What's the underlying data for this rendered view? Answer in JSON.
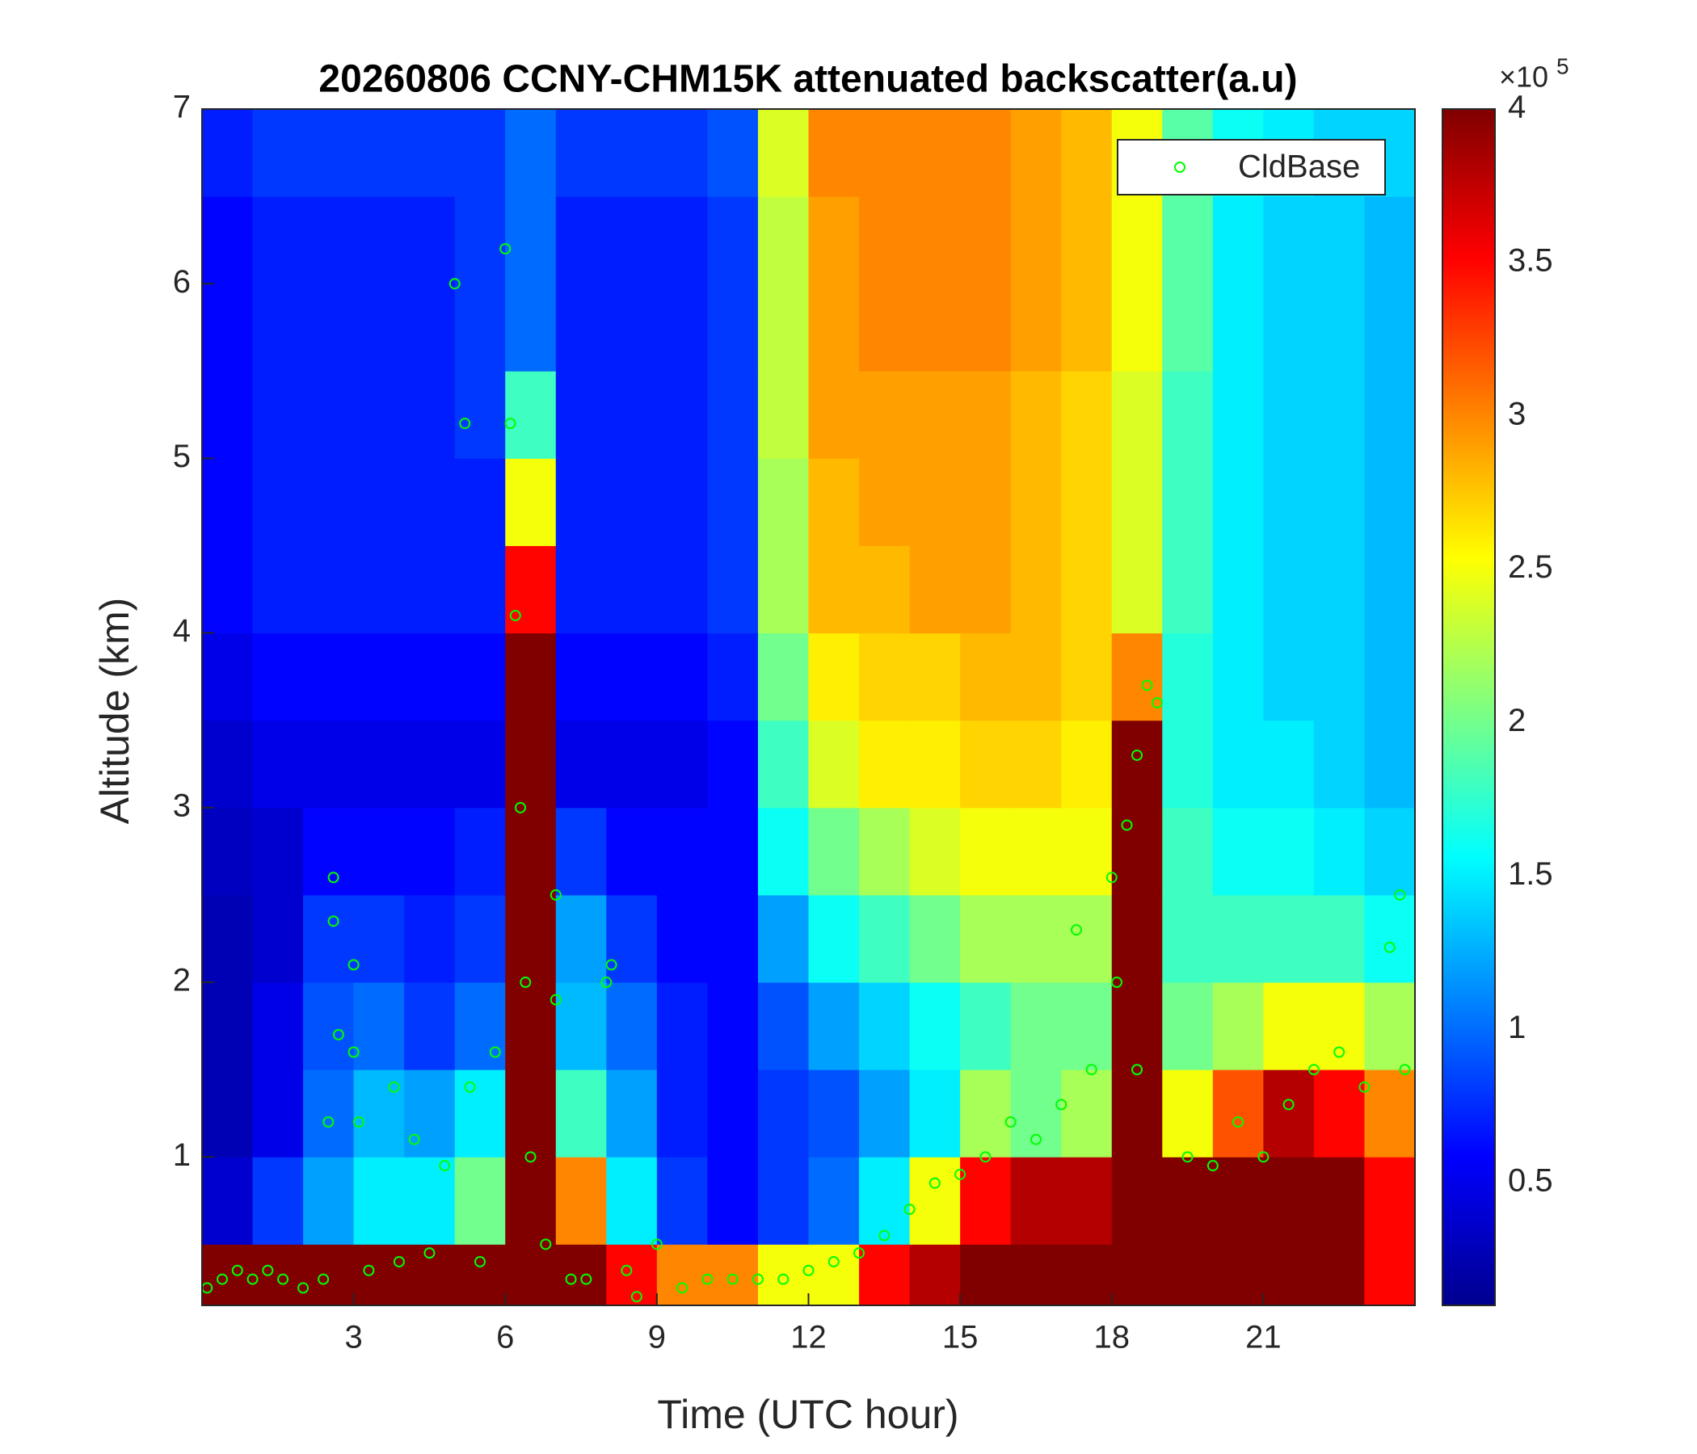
{
  "chart_data": {
    "type": "heatmap",
    "title": "20260806 CCNY-CHM15K attenuated backscatter(a.u)",
    "x_label": "Time (UTC hour)",
    "y_label": "Altitude (km)",
    "xlim": [
      0,
      24
    ],
    "xticks": [
      3,
      6,
      9,
      12,
      15,
      18,
      21
    ],
    "ylim": [
      0.15,
      7
    ],
    "yticks": [
      1,
      2,
      3,
      4,
      5,
      6,
      7
    ],
    "x_edges": [
      0,
      1,
      2,
      3,
      4,
      5,
      6,
      7,
      8,
      9,
      10,
      11,
      12,
      13,
      14,
      15,
      16,
      17,
      18,
      19,
      20,
      21,
      22,
      23,
      24
    ],
    "y_edges": [
      0.15,
      0.5,
      1,
      1.5,
      2,
      2.5,
      3,
      3.5,
      4,
      4.5,
      5,
      5.5,
      6,
      6.5,
      7
    ],
    "z": [
      [
        4,
        4,
        4,
        4,
        4,
        4,
        4,
        4,
        3.5,
        3,
        3,
        2.5,
        2.5,
        3.5,
        3.8,
        4,
        4,
        4,
        4,
        4,
        4,
        4,
        4,
        3.5
      ],
      [
        0.4,
        0.8,
        1.2,
        1.5,
        1.5,
        2,
        4,
        3,
        1.5,
        0.8,
        0.6,
        0.8,
        1,
        1.5,
        2.5,
        3.5,
        3.8,
        3.8,
        4,
        4,
        4,
        4,
        4,
        3.5
      ],
      [
        0.3,
        0.5,
        1,
        1.3,
        1.2,
        1.5,
        4,
        1.8,
        1.2,
        0.7,
        0.6,
        0.8,
        0.9,
        1.2,
        1.5,
        2.2,
        2,
        2.2,
        4,
        2.5,
        3.2,
        3.8,
        3.5,
        3
      ],
      [
        0.3,
        0.5,
        0.9,
        1,
        0.8,
        1,
        4,
        1.3,
        1,
        0.7,
        0.6,
        0.9,
        1.2,
        1.4,
        1.6,
        1.8,
        2,
        2,
        4,
        2,
        2.2,
        2.5,
        2.5,
        2.2
      ],
      [
        0.3,
        0.4,
        0.8,
        0.8,
        0.7,
        0.8,
        4,
        1.2,
        0.8,
        0.6,
        0.6,
        1.2,
        1.6,
        1.8,
        2,
        2.2,
        2.2,
        2.2,
        4,
        1.8,
        1.8,
        1.8,
        1.8,
        1.6
      ],
      [
        0.35,
        0.4,
        0.6,
        0.6,
        0.6,
        0.7,
        4,
        0.8,
        0.6,
        0.6,
        0.6,
        1.6,
        2,
        2.2,
        2.4,
        2.5,
        2.5,
        2.5,
        4,
        1.8,
        1.6,
        1.6,
        1.5,
        1.4
      ],
      [
        0.4,
        0.5,
        0.5,
        0.5,
        0.5,
        0.5,
        4,
        0.5,
        0.5,
        0.5,
        0.6,
        1.8,
        2.4,
        2.6,
        2.6,
        2.7,
        2.7,
        2.6,
        4,
        1.7,
        1.5,
        1.5,
        1.4,
        1.3
      ],
      [
        0.5,
        0.6,
        0.6,
        0.6,
        0.6,
        0.6,
        4,
        0.6,
        0.6,
        0.6,
        0.7,
        2,
        2.6,
        2.7,
        2.7,
        2.8,
        2.8,
        2.7,
        3,
        1.7,
        1.5,
        1.4,
        1.4,
        1.3
      ],
      [
        0.6,
        0.7,
        0.7,
        0.7,
        0.7,
        0.7,
        3.5,
        0.7,
        0.7,
        0.7,
        0.8,
        2.2,
        2.8,
        2.8,
        2.9,
        2.9,
        2.8,
        2.7,
        2.4,
        1.8,
        1.5,
        1.4,
        1.4,
        1.3
      ],
      [
        0.6,
        0.7,
        0.7,
        0.7,
        0.7,
        0.7,
        2.5,
        0.7,
        0.7,
        0.7,
        0.8,
        2.2,
        2.8,
        2.9,
        2.9,
        2.9,
        2.8,
        2.7,
        2.4,
        1.8,
        1.5,
        1.4,
        1.4,
        1.3
      ],
      [
        0.6,
        0.7,
        0.7,
        0.7,
        0.7,
        0.8,
        1.8,
        0.7,
        0.7,
        0.7,
        0.8,
        2.3,
        2.9,
        2.9,
        2.9,
        2.9,
        2.8,
        2.7,
        2.4,
        1.8,
        1.5,
        1.4,
        1.4,
        1.3
      ],
      [
        0.6,
        0.7,
        0.7,
        0.7,
        0.7,
        0.8,
        1,
        0.7,
        0.7,
        0.7,
        0.8,
        2.3,
        2.9,
        3,
        3,
        3,
        2.9,
        2.8,
        2.5,
        1.9,
        1.5,
        1.4,
        1.4,
        1.3
      ],
      [
        0.6,
        0.7,
        0.7,
        0.7,
        0.7,
        0.8,
        1,
        0.7,
        0.7,
        0.7,
        0.8,
        2.3,
        2.9,
        3,
        3,
        3,
        2.9,
        2.8,
        2.5,
        1.9,
        1.5,
        1.4,
        1.4,
        1.3
      ],
      [
        0.7,
        0.8,
        0.8,
        0.8,
        0.8,
        0.8,
        1,
        0.8,
        0.8,
        0.8,
        0.9,
        2.4,
        3,
        3,
        3,
        3,
        2.9,
        2.8,
        2.5,
        1.9,
        1.6,
        1.5,
        1.4,
        1.4
      ]
    ],
    "colormap": "jet",
    "clim": [
      0.1,
      4
    ],
    "colorbar_ticks": [
      0.5,
      1,
      1.5,
      2,
      2.5,
      3,
      3.5,
      4
    ],
    "colorbar_multiplier": "×10",
    "colorbar_exponent": 5,
    "legend": "upper right",
    "overlay": {
      "type": "scatter",
      "name": "CldBase",
      "color": "#00ff00",
      "x": [
        0.1,
        0.4,
        0.7,
        1.0,
        1.3,
        1.6,
        2,
        2.4,
        2.6,
        2.6,
        2.7,
        2.5,
        3.0,
        3.0,
        3.1,
        3.3,
        3.8,
        3.9,
        4.2,
        4.5,
        4.8,
        5.2,
        5.0,
        5.3,
        5.5,
        5.8,
        6.0,
        6.1,
        6.2,
        6.3,
        6.4,
        6.5,
        6.8,
        7.0,
        7.0,
        7.3,
        7.6,
        8.1,
        8.0,
        8.4,
        8.6,
        9.0,
        9.5,
        10,
        10.5,
        11,
        11.5,
        12,
        12.5,
        13,
        13.5,
        14,
        14.5,
        15,
        15.5,
        16,
        16.5,
        17,
        17.3,
        17.6,
        18.0,
        18.1,
        18.3,
        18.5,
        18.7,
        18.9,
        18.5,
        19.5,
        20,
        20.5,
        21,
        21.5,
        22,
        22.5,
        23,
        23.5,
        23.7,
        23.8
      ],
      "y": [
        0.25,
        0.3,
        0.35,
        0.3,
        0.35,
        0.3,
        0.25,
        0.3,
        2.6,
        2.35,
        1.7,
        1.2,
        2.1,
        1.6,
        1.2,
        0.35,
        1.4,
        0.4,
        1.1,
        0.45,
        0.95,
        5.2,
        6.0,
        1.4,
        0.4,
        1.6,
        6.2,
        5.2,
        4.1,
        3.0,
        2.0,
        1.0,
        0.5,
        2.5,
        1.9,
        0.3,
        0.3,
        2.1,
        2.0,
        0.35,
        0.2,
        0.5,
        0.25,
        0.3,
        0.3,
        0.3,
        0.3,
        0.35,
        0.4,
        0.45,
        0.55,
        0.7,
        0.85,
        0.9,
        1.0,
        1.2,
        1.1,
        1.3,
        2.3,
        1.5,
        2.6,
        2.0,
        2.9,
        3.3,
        3.7,
        3.6,
        1.5,
        1.0,
        0.95,
        1.2,
        1.0,
        1.3,
        1.5,
        1.6,
        1.4,
        2.2,
        2.5,
        1.5
      ]
    }
  }
}
